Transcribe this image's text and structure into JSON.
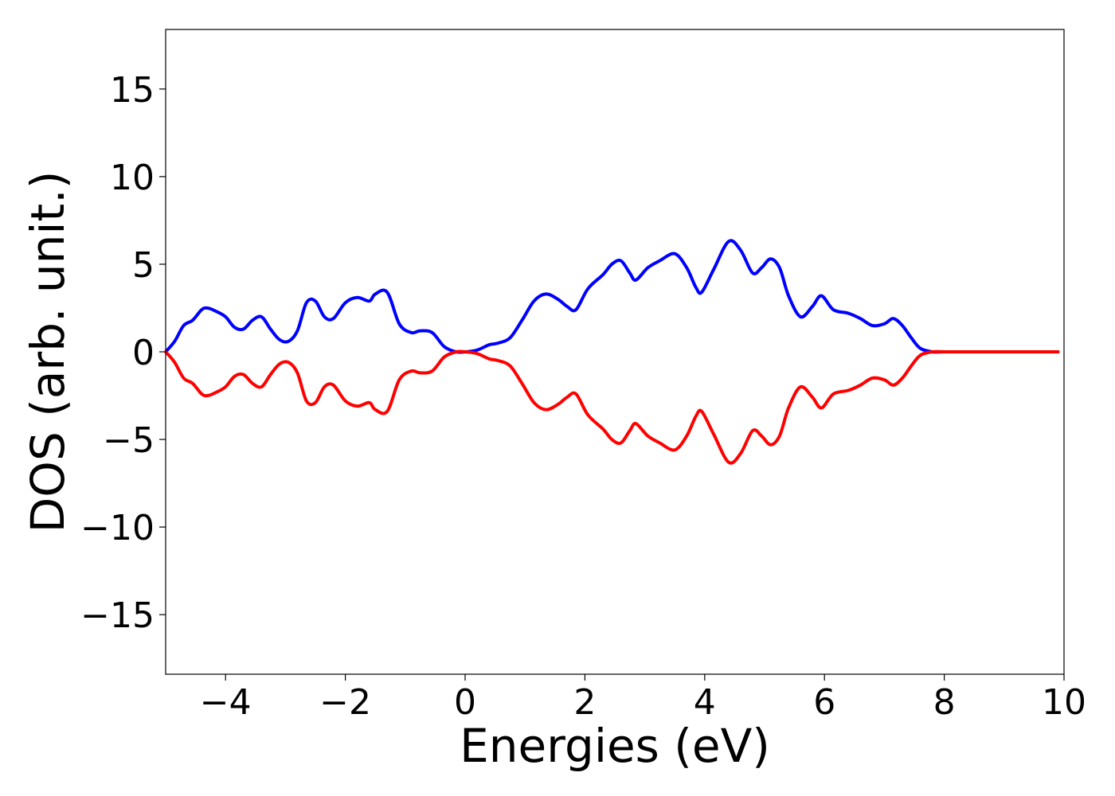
{
  "chart_data": {
    "type": "line",
    "title": "",
    "xlabel": "Energies (eV)",
    "ylabel": "DOS (arb. unit.)",
    "xlim": [
      -5,
      10
    ],
    "ylim": [
      -18.4,
      18.4
    ],
    "x_ticks": [
      -4,
      -2,
      0,
      2,
      4,
      6,
      8,
      10
    ],
    "x_tick_labels": [
      "−4",
      "−2",
      "0",
      "2",
      "4",
      "6",
      "8",
      "10"
    ],
    "y_ticks": [
      -15,
      -10,
      -5,
      0,
      5,
      10,
      15
    ],
    "y_tick_labels": [
      "−15",
      "−10",
      "−5",
      "0",
      "5",
      "10",
      "15"
    ],
    "grid": false,
    "legend": "none",
    "series": [
      {
        "color": "#0000ff",
        "x": [
          -5.0,
          -4.85,
          -4.7,
          -4.55,
          -4.4,
          -4.3,
          -4.15,
          -4.0,
          -3.85,
          -3.7,
          -3.55,
          -3.4,
          -3.25,
          -3.1,
          -2.95,
          -2.8,
          -2.65,
          -2.5,
          -2.35,
          -2.2,
          -2.0,
          -1.8,
          -1.6,
          -1.5,
          -1.3,
          -1.1,
          -0.9,
          -0.75,
          -0.55,
          -0.35,
          -0.15,
          0.0,
          0.2,
          0.4,
          0.55,
          0.75,
          0.95,
          1.15,
          1.35,
          1.55,
          1.7,
          1.85,
          2.05,
          2.3,
          2.45,
          2.6,
          2.75,
          2.85,
          3.05,
          3.25,
          3.5,
          3.7,
          3.85,
          3.95,
          4.15,
          4.4,
          4.6,
          4.8,
          4.95,
          5.1,
          5.25,
          5.4,
          5.6,
          5.8,
          5.95,
          6.15,
          6.4,
          6.6,
          6.8,
          7.0,
          7.15,
          7.3,
          7.45,
          7.6,
          7.8,
          8.0,
          8.5,
          9.0,
          9.5,
          9.9
        ],
        "values": [
          0.0,
          0.6,
          1.5,
          1.8,
          2.4,
          2.5,
          2.3,
          2.0,
          1.4,
          1.3,
          1.8,
          2.0,
          1.3,
          0.7,
          0.6,
          1.2,
          2.8,
          2.9,
          2.0,
          1.9,
          2.8,
          3.1,
          2.9,
          3.3,
          3.4,
          1.6,
          1.1,
          1.2,
          1.1,
          0.3,
          0.0,
          0.0,
          0.1,
          0.4,
          0.5,
          0.8,
          1.8,
          2.9,
          3.3,
          3.0,
          2.6,
          2.4,
          3.6,
          4.4,
          5.0,
          5.2,
          4.5,
          4.1,
          4.8,
          5.2,
          5.6,
          4.8,
          3.7,
          3.4,
          4.7,
          6.3,
          5.8,
          4.5,
          4.8,
          5.3,
          4.8,
          3.2,
          2.0,
          2.6,
          3.2,
          2.4,
          2.2,
          1.9,
          1.5,
          1.6,
          1.9,
          1.5,
          0.8,
          0.2,
          0.0,
          0.0,
          0.0,
          0.0,
          0.0,
          0.0
        ]
      },
      {
        "color": "#ff0000",
        "x": [
          -5.0,
          -4.85,
          -4.7,
          -4.55,
          -4.4,
          -4.3,
          -4.15,
          -4.0,
          -3.85,
          -3.7,
          -3.55,
          -3.4,
          -3.25,
          -3.1,
          -2.95,
          -2.8,
          -2.65,
          -2.5,
          -2.35,
          -2.2,
          -2.0,
          -1.8,
          -1.6,
          -1.5,
          -1.3,
          -1.1,
          -0.9,
          -0.75,
          -0.55,
          -0.35,
          -0.15,
          0.0,
          0.2,
          0.4,
          0.55,
          0.75,
          0.95,
          1.15,
          1.35,
          1.55,
          1.7,
          1.85,
          2.05,
          2.3,
          2.45,
          2.6,
          2.75,
          2.85,
          3.05,
          3.25,
          3.5,
          3.7,
          3.85,
          3.95,
          4.15,
          4.4,
          4.6,
          4.8,
          4.95,
          5.1,
          5.25,
          5.4,
          5.6,
          5.8,
          5.95,
          6.15,
          6.4,
          6.6,
          6.8,
          7.0,
          7.15,
          7.3,
          7.45,
          7.6,
          7.8,
          8.0,
          8.5,
          9.0,
          9.5,
          9.9
        ],
        "values": [
          0.0,
          -0.6,
          -1.5,
          -1.8,
          -2.4,
          -2.5,
          -2.3,
          -2.0,
          -1.4,
          -1.3,
          -1.8,
          -2.0,
          -1.3,
          -0.7,
          -0.6,
          -1.2,
          -2.8,
          -2.9,
          -2.0,
          -1.9,
          -2.8,
          -3.1,
          -2.9,
          -3.3,
          -3.4,
          -1.6,
          -1.1,
          -1.2,
          -1.1,
          -0.3,
          0.0,
          0.0,
          -0.1,
          -0.4,
          -0.5,
          -0.8,
          -1.8,
          -2.9,
          -3.3,
          -3.0,
          -2.6,
          -2.4,
          -3.6,
          -4.4,
          -5.0,
          -5.2,
          -4.5,
          -4.1,
          -4.8,
          -5.2,
          -5.6,
          -4.8,
          -3.7,
          -3.4,
          -4.7,
          -6.3,
          -5.8,
          -4.5,
          -4.8,
          -5.3,
          -4.8,
          -3.2,
          -2.0,
          -2.6,
          -3.2,
          -2.4,
          -2.2,
          -1.9,
          -1.5,
          -1.6,
          -1.9,
          -1.5,
          -0.8,
          -0.2,
          0.0,
          0.0,
          0.0,
          0.0,
          0.0,
          0.0
        ]
      }
    ]
  }
}
